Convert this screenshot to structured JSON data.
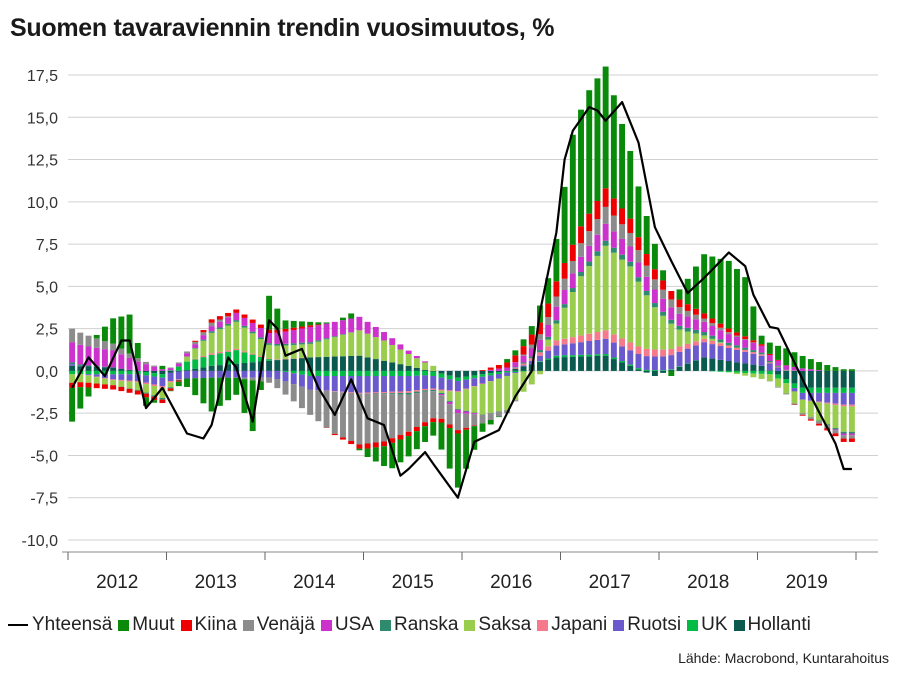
{
  "title": "Suomen tavaraviennin trendin vuosimuutos, %",
  "source": "Lähde: Macrobond, Kuntarahoitus",
  "legend": [
    {
      "name": "Yhteensä",
      "type": "line",
      "color": "#000000"
    },
    {
      "name": "Muut",
      "type": "bar",
      "color": "#0a8a0a"
    },
    {
      "name": "Kiina",
      "type": "bar",
      "color": "#ee0000"
    },
    {
      "name": "Venäjä",
      "type": "bar",
      "color": "#8c8c8c"
    },
    {
      "name": "USA",
      "type": "bar",
      "color": "#cc33cc"
    },
    {
      "name": "Ranska",
      "type": "bar",
      "color": "#2e8b6e"
    },
    {
      "name": "Saksa",
      "type": "bar",
      "color": "#9acd4e"
    },
    {
      "name": "Japani",
      "type": "bar",
      "color": "#f77a8c"
    },
    {
      "name": "Ruotsi",
      "type": "bar",
      "color": "#6a5acd"
    },
    {
      "name": "UK",
      "type": "bar",
      "color": "#00bb44"
    },
    {
      "name": "Hollanti",
      "type": "bar",
      "color": "#0b5a50"
    }
  ],
  "chart_data": {
    "type": "bar",
    "stacked": true,
    "frequency": "monthly",
    "title": "Suomen tavaraviennin trendin vuosimuutos, %",
    "ylim": [
      -11,
      18
    ],
    "yticks": [
      -10,
      -7.5,
      -5,
      -2.5,
      0,
      2.5,
      5,
      7.5,
      10,
      12.5,
      15,
      17.5
    ],
    "ytick_labels": [
      "-10,0",
      "-7,5",
      "-5,0",
      "-2,5",
      "0,0",
      "2,5",
      "5,0",
      "7,5",
      "10,0",
      "12,5",
      "15,0",
      "17,5"
    ],
    "years": [
      "2012",
      "2013",
      "2014",
      "2015",
      "2016",
      "2017",
      "2018",
      "2019"
    ],
    "grid": true,
    "total_series": "Yhteensä",
    "total_control_points": [
      [
        "2012-01",
        -1.0
      ],
      [
        "2012-03",
        0.8
      ],
      [
        "2012-05",
        -0.3
      ],
      [
        "2012-07",
        1.8
      ],
      [
        "2012-08",
        1.8
      ],
      [
        "2012-10",
        -2.2
      ],
      [
        "2012-12",
        -1.0
      ],
      [
        "2013-03",
        -3.7
      ],
      [
        "2013-05",
        -4.0
      ],
      [
        "2013-06",
        -3.2
      ],
      [
        "2013-08",
        0.8
      ],
      [
        "2013-09",
        0.2
      ],
      [
        "2013-11",
        -3.0
      ],
      [
        "2014-01",
        3.0
      ],
      [
        "2014-02",
        2.5
      ],
      [
        "2014-03",
        0.9
      ],
      [
        "2014-05",
        1.3
      ],
      [
        "2014-07",
        -1.0
      ],
      [
        "2014-09",
        -2.6
      ],
      [
        "2014-11",
        -0.5
      ],
      [
        "2015-01",
        -2.8
      ],
      [
        "2015-03",
        -3.2
      ],
      [
        "2015-05",
        -6.2
      ],
      [
        "2015-06",
        -5.8
      ],
      [
        "2015-08",
        -4.8
      ],
      [
        "2015-09",
        -5.5
      ],
      [
        "2015-12",
        -7.5
      ],
      [
        "2016-02",
        -4.2
      ],
      [
        "2016-05",
        -3.5
      ],
      [
        "2016-07",
        -1.5
      ],
      [
        "2016-09",
        0.0
      ],
      [
        "2016-10",
        3.5
      ],
      [
        "2016-12",
        8.2
      ],
      [
        "2017-01",
        12.5
      ],
      [
        "2017-02",
        14.2
      ],
      [
        "2017-04",
        15.6
      ],
      [
        "2017-05",
        15.4
      ],
      [
        "2017-06",
        14.8
      ],
      [
        "2017-08",
        15.9
      ],
      [
        "2017-10",
        13.5
      ],
      [
        "2017-12",
        8.5
      ],
      [
        "2018-02",
        6.5
      ],
      [
        "2018-04",
        4.6
      ],
      [
        "2018-06",
        5.5
      ],
      [
        "2018-09",
        7.0
      ],
      [
        "2018-11",
        6.2
      ],
      [
        "2018-12",
        4.5
      ],
      [
        "2019-02",
        2.6
      ],
      [
        "2019-03",
        2.5
      ],
      [
        "2019-05",
        0.5
      ],
      [
        "2019-07",
        -1.5
      ],
      [
        "2019-10",
        -4.3
      ],
      [
        "2019-11",
        -5.8
      ]
    ],
    "muut_control_points": [
      [
        "2012-01",
        -2.0
      ],
      [
        "2012-04",
        0.2
      ],
      [
        "2012-06",
        1.5
      ],
      [
        "2012-08",
        2.3
      ],
      [
        "2012-10",
        -0.5
      ],
      [
        "2012-12",
        0.2
      ],
      [
        "2013-03",
        -0.5
      ],
      [
        "2013-06",
        -2.0
      ],
      [
        "2013-09",
        -1.0
      ],
      [
        "2013-11",
        -3.0
      ],
      [
        "2014-01",
        2.0
      ],
      [
        "2014-03",
        0.5
      ],
      [
        "2014-06",
        0.2
      ],
      [
        "2014-09",
        0.0
      ],
      [
        "2014-11",
        0.3
      ],
      [
        "2015-01",
        -0.5
      ],
      [
        "2015-04",
        -1.5
      ],
      [
        "2015-06",
        -1.2
      ],
      [
        "2015-09",
        -0.8
      ],
      [
        "2015-12",
        -3.2
      ],
      [
        "2016-03",
        -0.5
      ],
      [
        "2016-06",
        0.2
      ],
      [
        "2016-09",
        0.5
      ],
      [
        "2016-11",
        1.5
      ],
      [
        "2016-12",
        2.5
      ],
      [
        "2017-02",
        6.5
      ],
      [
        "2017-04",
        7.3
      ],
      [
        "2017-06",
        7.2
      ],
      [
        "2017-08",
        5.0
      ],
      [
        "2017-10",
        3.0
      ],
      [
        "2017-12",
        1.5
      ],
      [
        "2018-02",
        -0.3
      ],
      [
        "2018-04",
        1.5
      ],
      [
        "2018-06",
        3.5
      ],
      [
        "2018-09",
        4.0
      ],
      [
        "2018-11",
        3.5
      ],
      [
        "2019-01",
        0.5
      ],
      [
        "2019-04",
        1.0
      ],
      [
        "2019-07",
        0.6
      ],
      [
        "2019-11",
        0.1
      ]
    ],
    "kiina_control_points": [
      [
        "2012-01",
        -0.3
      ],
      [
        "2012-12",
        -0.2
      ],
      [
        "2013-06",
        0.2
      ],
      [
        "2014-01",
        0.2
      ],
      [
        "2014-06",
        0.1
      ],
      [
        "2015-01",
        -0.3
      ],
      [
        "2015-12",
        -0.2
      ],
      [
        "2016-06",
        0.3
      ],
      [
        "2016-12",
        0.9
      ],
      [
        "2017-06",
        1.1
      ],
      [
        "2017-12",
        0.6
      ],
      [
        "2018-06",
        0.3
      ],
      [
        "2019-01",
        0.1
      ],
      [
        "2019-11",
        -0.2
      ]
    ],
    "venaja_control_points": [
      [
        "2012-01",
        0.8
      ],
      [
        "2012-06",
        0.4
      ],
      [
        "2012-12",
        0.0
      ],
      [
        "2013-06",
        0.2
      ],
      [
        "2014-01",
        -0.3
      ],
      [
        "2014-06",
        -1.5
      ],
      [
        "2014-09",
        -2.5
      ],
      [
        "2014-12",
        -3.0
      ],
      [
        "2015-03",
        -2.8
      ],
      [
        "2015-06",
        -2.2
      ],
      [
        "2015-09",
        -1.6
      ],
      [
        "2015-12",
        -1.0
      ],
      [
        "2016-03",
        -0.5
      ],
      [
        "2016-06",
        -0.2
      ],
      [
        "2016-12",
        0.6
      ],
      [
        "2017-06",
        1.0
      ],
      [
        "2017-12",
        0.6
      ],
      [
        "2018-06",
        0.2
      ],
      [
        "2019-01",
        0.0
      ],
      [
        "2019-11",
        -0.2
      ]
    ],
    "usa_control_points": [
      [
        "2012-01",
        1.2
      ],
      [
        "2012-06",
        1.0
      ],
      [
        "2012-12",
        0.1
      ],
      [
        "2013-06",
        0.3
      ],
      [
        "2014-01",
        0.6
      ],
      [
        "2014-06",
        0.9
      ],
      [
        "2014-12",
        0.8
      ],
      [
        "2015-06",
        0.2
      ],
      [
        "2015-12",
        -0.2
      ],
      [
        "2016-06",
        0.2
      ],
      [
        "2016-12",
        0.8
      ],
      [
        "2017-06",
        1.0
      ],
      [
        "2017-12",
        0.8
      ],
      [
        "2018-06",
        0.6
      ],
      [
        "2019-01",
        0.4
      ],
      [
        "2019-11",
        -0.1
      ]
    ],
    "ranska_control_points": [
      [
        "2012-01",
        0.1
      ],
      [
        "2012-12",
        -0.1
      ],
      [
        "2013-06",
        0.1
      ],
      [
        "2014-06",
        0.1
      ],
      [
        "2015-06",
        -0.1
      ],
      [
        "2016-06",
        0.0
      ],
      [
        "2016-12",
        0.2
      ],
      [
        "2017-06",
        0.3
      ],
      [
        "2018-06",
        0.2
      ],
      [
        "2019-01",
        0.1
      ],
      [
        "2019-11",
        -0.1
      ]
    ],
    "saksa_control_points": [
      [
        "2012-01",
        -0.5
      ],
      [
        "2012-06",
        -0.3
      ],
      [
        "2012-12",
        -0.6
      ],
      [
        "2013-06",
        1.2
      ],
      [
        "2013-09",
        1.6
      ],
      [
        "2014-01",
        0.8
      ],
      [
        "2014-06",
        0.8
      ],
      [
        "2014-12",
        1.5
      ],
      [
        "2015-03",
        1.2
      ],
      [
        "2015-06",
        0.7
      ],
      [
        "2015-09",
        0.3
      ],
      [
        "2015-12",
        -1.0
      ],
      [
        "2016-03",
        -1.8
      ],
      [
        "2016-06",
        -2.0
      ],
      [
        "2016-09",
        -0.8
      ],
      [
        "2016-12",
        1.0
      ],
      [
        "2017-03",
        3.5
      ],
      [
        "2017-06",
        5.0
      ],
      [
        "2017-09",
        4.5
      ],
      [
        "2017-12",
        2.5
      ],
      [
        "2018-03",
        1.0
      ],
      [
        "2018-06",
        0.2
      ],
      [
        "2019-01",
        -0.3
      ],
      [
        "2019-06",
        -0.8
      ],
      [
        "2019-11",
        -1.5
      ]
    ],
    "japani_control_points": [
      [
        "2012-01",
        0.0
      ],
      [
        "2012-12",
        -0.1
      ],
      [
        "2013-06",
        0.1
      ],
      [
        "2014-06",
        0.0
      ],
      [
        "2015-06",
        -0.1
      ],
      [
        "2016-06",
        0.0
      ],
      [
        "2016-12",
        0.3
      ],
      [
        "2017-06",
        0.5
      ],
      [
        "2018-01",
        0.4
      ],
      [
        "2018-06",
        0.2
      ],
      [
        "2019-06",
        0.0
      ],
      [
        "2019-11",
        -0.1
      ]
    ],
    "ruotsi_control_points": [
      [
        "2012-01",
        0.1
      ],
      [
        "2012-06",
        -0.3
      ],
      [
        "2012-12",
        -0.5
      ],
      [
        "2013-06",
        -0.4
      ],
      [
        "2014-01",
        -0.4
      ],
      [
        "2014-06",
        -0.8
      ],
      [
        "2014-12",
        -1.0
      ],
      [
        "2015-06",
        -0.9
      ],
      [
        "2015-12",
        -0.6
      ],
      [
        "2016-06",
        -0.2
      ],
      [
        "2016-12",
        0.6
      ],
      [
        "2017-06",
        0.9
      ],
      [
        "2017-12",
        0.8
      ],
      [
        "2018-06",
        0.9
      ],
      [
        "2019-01",
        0.6
      ],
      [
        "2019-06",
        -0.4
      ],
      [
        "2019-11",
        -0.7
      ]
    ],
    "uk_control_points": [
      [
        "2012-01",
        -0.2
      ],
      [
        "2012-12",
        -0.2
      ],
      [
        "2013-03",
        0.5
      ],
      [
        "2013-09",
        0.8
      ],
      [
        "2014-01",
        0.1
      ],
      [
        "2014-06",
        -0.3
      ],
      [
        "2015-06",
        -0.3
      ],
      [
        "2016-06",
        -0.1
      ],
      [
        "2016-12",
        0.1
      ],
      [
        "2017-06",
        0.1
      ],
      [
        "2018-06",
        0.0
      ],
      [
        "2019-06",
        -0.3
      ],
      [
        "2019-11",
        -0.3
      ]
    ],
    "hollanti_control_points": [
      [
        "2012-01",
        0.3
      ],
      [
        "2012-06",
        0.2
      ],
      [
        "2012-12",
        -0.2
      ],
      [
        "2013-06",
        0.3
      ],
      [
        "2014-01",
        0.6
      ],
      [
        "2014-06",
        0.8
      ],
      [
        "2014-12",
        0.9
      ],
      [
        "2015-06",
        0.3
      ],
      [
        "2015-12",
        -0.4
      ],
      [
        "2016-06",
        0.0
      ],
      [
        "2016-12",
        0.8
      ],
      [
        "2017-06",
        0.9
      ],
      [
        "2017-12",
        -0.3
      ],
      [
        "2018-06",
        0.8
      ],
      [
        "2019-01",
        0.3
      ],
      [
        "2019-06",
        -1.0
      ],
      [
        "2019-11",
        -1.0
      ]
    ]
  }
}
